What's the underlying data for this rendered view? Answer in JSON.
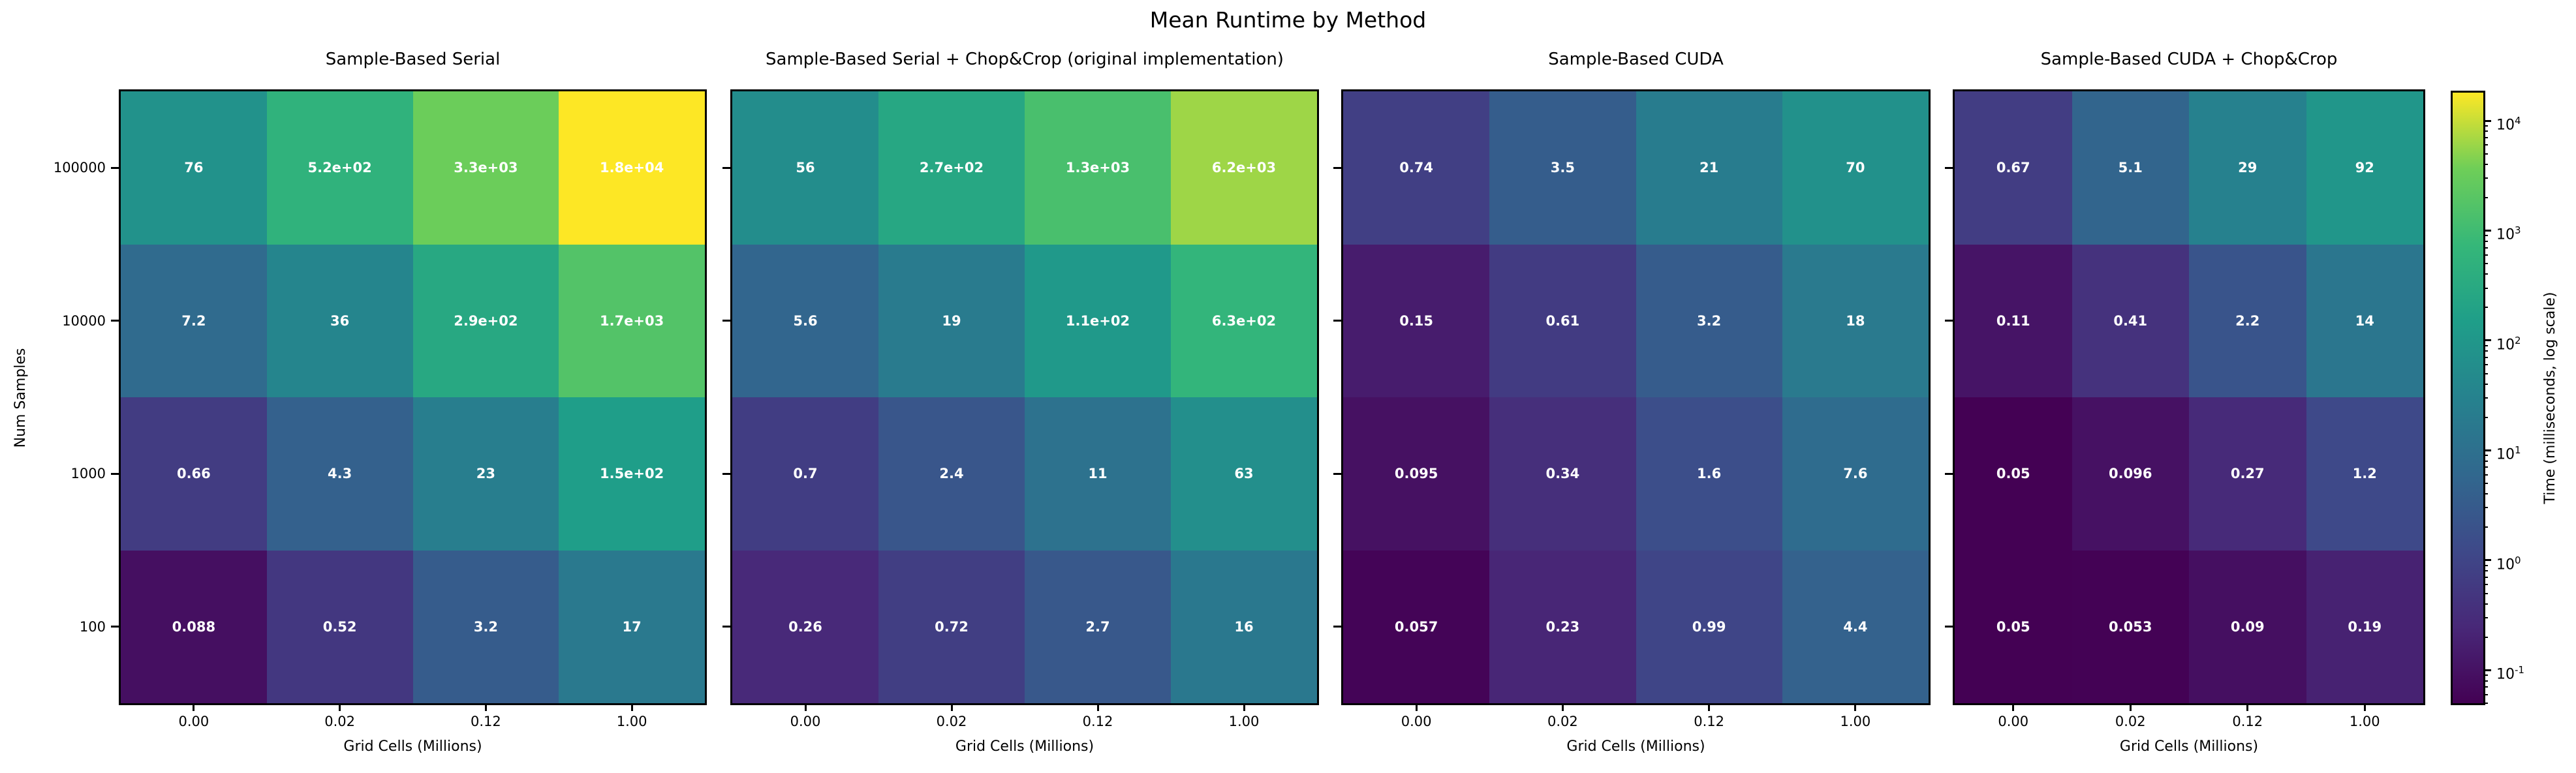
{
  "chart_data": {
    "type": "heatmap",
    "title": "Mean Runtime by Method",
    "xlabel": "Grid Cells (Millions)",
    "ylabel": "Num Samples",
    "x_ticklabels": [
      "0.00",
      "0.02",
      "0.12",
      "1.00"
    ],
    "y_ticklabels": [
      "100000",
      "10000",
      "1000",
      "100"
    ],
    "grid": "off",
    "panels": [
      {
        "title": "Sample-Based Serial",
        "values": [
          [
            76,
            520,
            3300,
            18000
          ],
          [
            7.2,
            36,
            290,
            1700
          ],
          [
            0.66,
            4.3,
            23,
            150
          ],
          [
            0.088,
            0.52,
            3.2,
            17
          ]
        ],
        "labels": [
          [
            "76",
            "5.2e+02",
            "3.3e+03",
            "1.8e+04"
          ],
          [
            "7.2",
            "36",
            "2.9e+02",
            "1.7e+03"
          ],
          [
            "0.66",
            "4.3",
            "23",
            "1.5e+02"
          ],
          [
            "0.088",
            "0.52",
            "3.2",
            "17"
          ]
        ]
      },
      {
        "title": "Sample-Based Serial + Chop&Crop (original implementation)",
        "values": [
          [
            56,
            270,
            1300,
            6200
          ],
          [
            5.6,
            19,
            110,
            630
          ],
          [
            0.7,
            2.4,
            11,
            63
          ],
          [
            0.26,
            0.72,
            2.7,
            16
          ]
        ],
        "labels": [
          [
            "56",
            "2.7e+02",
            "1.3e+03",
            "6.2e+03"
          ],
          [
            "5.6",
            "19",
            "1.1e+02",
            "6.3e+02"
          ],
          [
            "0.7",
            "2.4",
            "11",
            "63"
          ],
          [
            "0.26",
            "0.72",
            "2.7",
            "16"
          ]
        ]
      },
      {
        "title": "Sample-Based CUDA",
        "values": [
          [
            0.74,
            3.5,
            21,
            70
          ],
          [
            0.15,
            0.61,
            3.2,
            18
          ],
          [
            0.095,
            0.34,
            1.6,
            7.6
          ],
          [
            0.057,
            0.23,
            0.99,
            4.4
          ]
        ],
        "labels": [
          [
            "0.74",
            "3.5",
            "21",
            "70"
          ],
          [
            "0.15",
            "0.61",
            "3.2",
            "18"
          ],
          [
            "0.095",
            "0.34",
            "1.6",
            "7.6"
          ],
          [
            "0.057",
            "0.23",
            "0.99",
            "4.4"
          ]
        ]
      },
      {
        "title": "Sample-Based CUDA + Chop&Crop",
        "values": [
          [
            0.67,
            5.1,
            29,
            92
          ],
          [
            0.11,
            0.41,
            2.2,
            14
          ],
          [
            0.05,
            0.096,
            0.27,
            1.2
          ],
          [
            0.05,
            0.053,
            0.09,
            0.19
          ]
        ],
        "labels": [
          [
            "0.67",
            "5.1",
            "29",
            "92"
          ],
          [
            "0.11",
            "0.41",
            "2.2",
            "14"
          ],
          [
            "0.05",
            "0.096",
            "0.27",
            "1.2"
          ],
          [
            "0.05",
            "0.053",
            "0.09",
            "0.19"
          ]
        ]
      }
    ],
    "colorbar": {
      "label": "Time (milliseconds, log scale)",
      "scale": "log",
      "vmin": 0.05,
      "vmax": 18000,
      "tick_exponents": [
        4,
        3,
        2,
        1,
        0,
        -1
      ],
      "colormap": "viridis"
    },
    "colors": {
      "background": "#ffffff",
      "axis_text": "#000000",
      "cell_text": "#ffffff",
      "spine": "#000000",
      "viridis_stops": [
        "#440154",
        "#482878",
        "#3e4989",
        "#31688e",
        "#26828e",
        "#1f9e89",
        "#35b779",
        "#6ece58",
        "#fde725"
      ]
    }
  }
}
